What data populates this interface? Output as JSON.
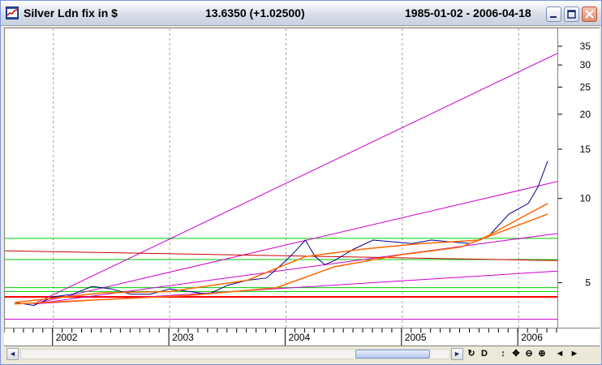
{
  "window": {
    "symbol_title": "Silver Ldn fix in $",
    "price_title": "13.6350 (+1.02500)",
    "range_title": "1985-01-02 - 2006-04-18",
    "buttons": {
      "minimize": "minimize",
      "maximize": "maximize",
      "close": "close"
    }
  },
  "chart_data": {
    "type": "line",
    "title": "Silver Ldn fix in $",
    "y_scale": "log",
    "ylim": [
      3.5,
      40
    ],
    "xlim": [
      "2001-08",
      "2006-05"
    ],
    "y_ticks": [
      "35",
      "30",
      "25",
      "20",
      "15",
      "10",
      "5"
    ],
    "x_ticks": [
      "2002",
      "2003",
      "2004",
      "2005",
      "2006"
    ],
    "grid": "vertical dashed at year boundaries",
    "series": [
      {
        "color": "#00008b",
        "x": [
          "2001-09",
          "2001-11",
          "2002-01",
          "2002-03",
          "2002-05",
          "2002-07",
          "2002-09",
          "2002-11",
          "2003-01",
          "2003-03",
          "2003-05",
          "2003-07",
          "2003-09",
          "2003-11",
          "2004-01",
          "2004-02",
          "2004-03",
          "2004-04",
          "2004-05",
          "2004-06",
          "2004-08",
          "2004-10",
          "2004-12",
          "2005-02",
          "2005-04",
          "2005-06",
          "2005-08",
          "2005-10",
          "2005-12",
          "2006-02",
          "2006-03",
          "2006-04"
        ],
        "values": [
          4.25,
          4.15,
          4.45,
          4.55,
          4.85,
          4.75,
          4.55,
          4.55,
          4.75,
          4.65,
          4.55,
          4.9,
          5.1,
          5.2,
          6.0,
          6.5,
          7.1,
          6.2,
          5.8,
          6.0,
          6.6,
          7.1,
          7.0,
          6.9,
          7.1,
          7.0,
          6.9,
          7.4,
          8.8,
          9.6,
          11.0,
          13.6
        ]
      },
      {
        "color": "#ff6600",
        "x": [
          "2001-09",
          "2002-06",
          "2003-01",
          "2003-09",
          "2004-03",
          "2004-09",
          "2005-03",
          "2005-09",
          "2006-04"
        ],
        "values": [
          4.25,
          4.6,
          4.65,
          5.1,
          6.2,
          6.6,
          6.9,
          7.1,
          9.6
        ]
      },
      {
        "color": "#ff6600",
        "x": [
          "2001-09",
          "2002-06",
          "2003-03",
          "2003-12",
          "2004-06",
          "2005-01",
          "2005-07",
          "2006-04"
        ],
        "values": [
          4.2,
          4.35,
          4.5,
          4.8,
          5.7,
          6.3,
          6.7,
          8.8
        ]
      }
    ],
    "horizontal_levels": [
      {
        "color": "#00cc00",
        "value": 7.2
      },
      {
        "color": "#00cc00",
        "value": 6.05
      },
      {
        "color": "#00cc00",
        "value": 4.8
      },
      {
        "color": "#00cc00",
        "value": 4.65
      },
      {
        "color": "#ff0000",
        "value": 4.45
      }
    ],
    "trend_lines": [
      {
        "color": "#cc00cc",
        "from": [
          "2001-11",
          4.2
        ],
        "to": [
          "2006-05",
          33
        ]
      },
      {
        "color": "#cc00cc",
        "from": [
          "2001-11",
          4.2
        ],
        "to": [
          "2006-05",
          11.5
        ]
      },
      {
        "color": "#cc00cc",
        "from": [
          "2001-11",
          4.2
        ],
        "to": [
          "2006-05",
          7.5
        ]
      },
      {
        "color": "#cc00cc",
        "from": [
          "2001-11",
          4.2
        ],
        "to": [
          "2006-05",
          5.5
        ]
      },
      {
        "color": "#cc0000",
        "from": [
          "2001-08",
          6.5
        ],
        "to": [
          "2006-05",
          6.0
        ]
      },
      {
        "color": "#cc00cc",
        "from": [
          "2001-08",
          3.7
        ],
        "to": [
          "2006-05",
          3.7
        ]
      }
    ]
  },
  "toolbar": {
    "scroll_left": "◄",
    "scroll_right": "►",
    "refresh_icon": "↻",
    "daily_label": "D",
    "updown_icon": "↕",
    "move_icon": "✥",
    "zoom_out_icon": "⊖",
    "zoom_in_icon": "⊕",
    "prev_icon": "◄",
    "next_icon": "►"
  }
}
